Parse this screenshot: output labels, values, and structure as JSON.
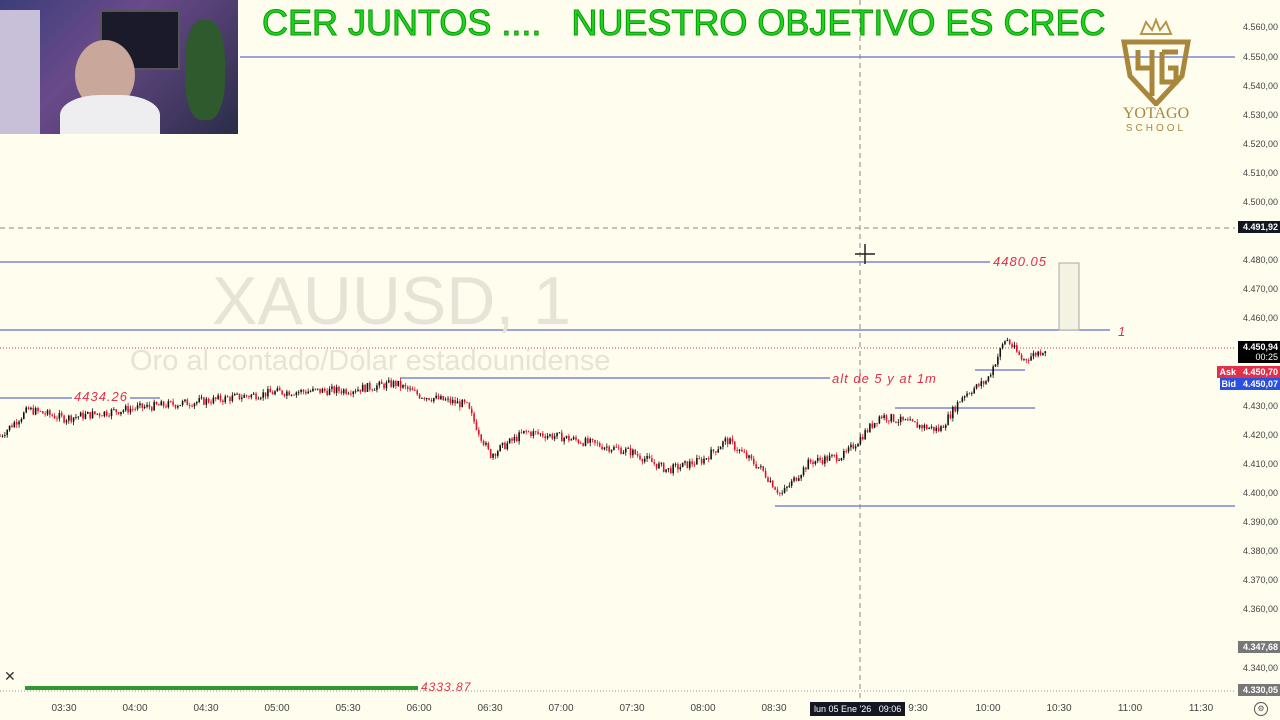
{
  "banner": {
    "text": "CER JUNTOS ....   NUESTRO OBJETIVO ES CREC"
  },
  "logo": {
    "name": "YOTAGO",
    "sub": "SCHOOL"
  },
  "symbol": {
    "ticker": "XAUUSD, 1",
    "description": "Oro al contado/Dólar estadounidense"
  },
  "price_axis": {
    "ticks": [
      "4.560,00",
      "4.550,00",
      "4.540,00",
      "4.530,00",
      "4.520,00",
      "4.510,00",
      "4.500,00",
      "4.480,00",
      "4.470,00",
      "4.460,00",
      "4.430,00",
      "4.420,00",
      "4.410,00",
      "4.400,00",
      "4.390,00",
      "4.380,00",
      "4.370,00",
      "4.360,00",
      "4.340,00"
    ],
    "tick_values": [
      4560,
      4550,
      4540,
      4530,
      4520,
      4510,
      4500,
      4480,
      4470,
      4460,
      4430,
      4420,
      4410,
      4400,
      4390,
      4380,
      4370,
      4360,
      4340
    ],
    "crosshair_price": "4.491,92",
    "last_price": "4.450,94",
    "countdown": "00:25",
    "ask_label": "Ask",
    "ask_price": "4.450,70",
    "bid_label": "Bid",
    "bid_price": "4.450,07",
    "low_tag": "4.347,68",
    "bottom_tag": "4.330,05"
  },
  "time_axis": {
    "ticks": [
      "03:30",
      "04:00",
      "04:30",
      "05:00",
      "05:30",
      "06:00",
      "06:30",
      "07:00",
      "07:30",
      "08:00",
      "08:30",
      "9:30",
      "10:00",
      "10:30",
      "11:00",
      "11:30"
    ],
    "crosshair_time": "lun 05 Ene '26   09:06"
  },
  "annotations": {
    "level_4480": "4480.05",
    "level_left": "4434.26",
    "level_one": "1",
    "note": "alt de 5  y at  1m",
    "green_bar_label": "4333.87"
  },
  "colors": {
    "up": "#111111",
    "down": "#e0102a",
    "line": "#6070d8",
    "label": "#e0304c",
    "banner": "#1ed51e",
    "background": "#fefdee"
  },
  "price_path": [
    [
      "03:03",
      4420
    ],
    [
      "03:15",
      4429
    ],
    [
      "03:30",
      4426
    ],
    [
      "04:00",
      4429.5
    ],
    [
      "04:30",
      4432
    ],
    [
      "05:00",
      4435
    ],
    [
      "05:30",
      4435.7
    ],
    [
      "05:50",
      4438
    ],
    [
      "06:00",
      4434
    ],
    [
      "06:20",
      4430.6
    ],
    [
      "06:30",
      4413.4
    ],
    [
      "06:45",
      4421.3
    ],
    [
      "07:00",
      4419.6
    ],
    [
      "07:30",
      4414.4
    ],
    [
      "07:45",
      4408.2
    ],
    [
      "08:00",
      4411.7
    ],
    [
      "08:10",
      4418.6
    ],
    [
      "08:25",
      4408.2
    ],
    [
      "08:33",
      4399.7
    ],
    [
      "08:45",
      4411
    ],
    [
      "09:00",
      4413.4
    ],
    [
      "09:15",
      4427
    ],
    [
      "09:30",
      4423.7
    ],
    [
      "09:40",
      4422
    ],
    [
      "09:50",
      4434
    ],
    [
      "10:00",
      4439
    ],
    [
      "10:08",
      4453.6
    ],
    [
      "10:15",
      4446
    ],
    [
      "10:25",
      4450
    ]
  ]
}
